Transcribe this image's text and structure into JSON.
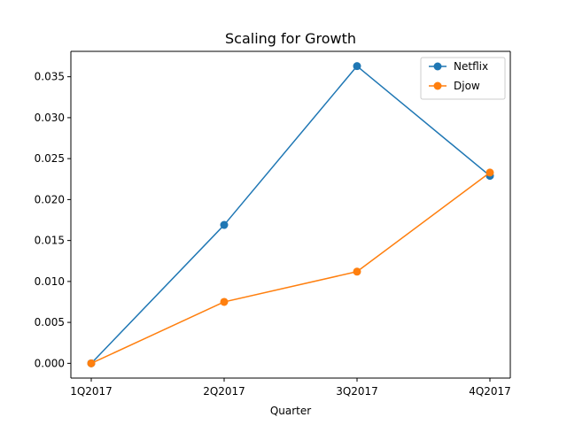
{
  "chart_data": {
    "type": "line",
    "title": "Scaling for Growth",
    "xlabel": "Quarter",
    "ylabel": "",
    "categories": [
      "1Q2017",
      "2Q2017",
      "3Q2017",
      "4Q2017"
    ],
    "ylim": [
      -0.0018,
      0.0381
    ],
    "yticks": [
      0.0,
      0.005,
      0.01,
      0.015,
      0.02,
      0.025,
      0.03,
      0.035
    ],
    "ytick_labels": [
      "0.000",
      "0.005",
      "0.010",
      "0.015",
      "0.020",
      "0.025",
      "0.030",
      "0.035"
    ],
    "grid": false,
    "legend_position": "top-right",
    "series": [
      {
        "name": "Netflix",
        "color": "#1f77b4",
        "values": [
          0.0,
          0.0169,
          0.0363,
          0.0229
        ]
      },
      {
        "name": "Djow",
        "color": "#ff7f0e",
        "values": [
          0.0,
          0.0075,
          0.0112,
          0.0233
        ]
      }
    ]
  }
}
